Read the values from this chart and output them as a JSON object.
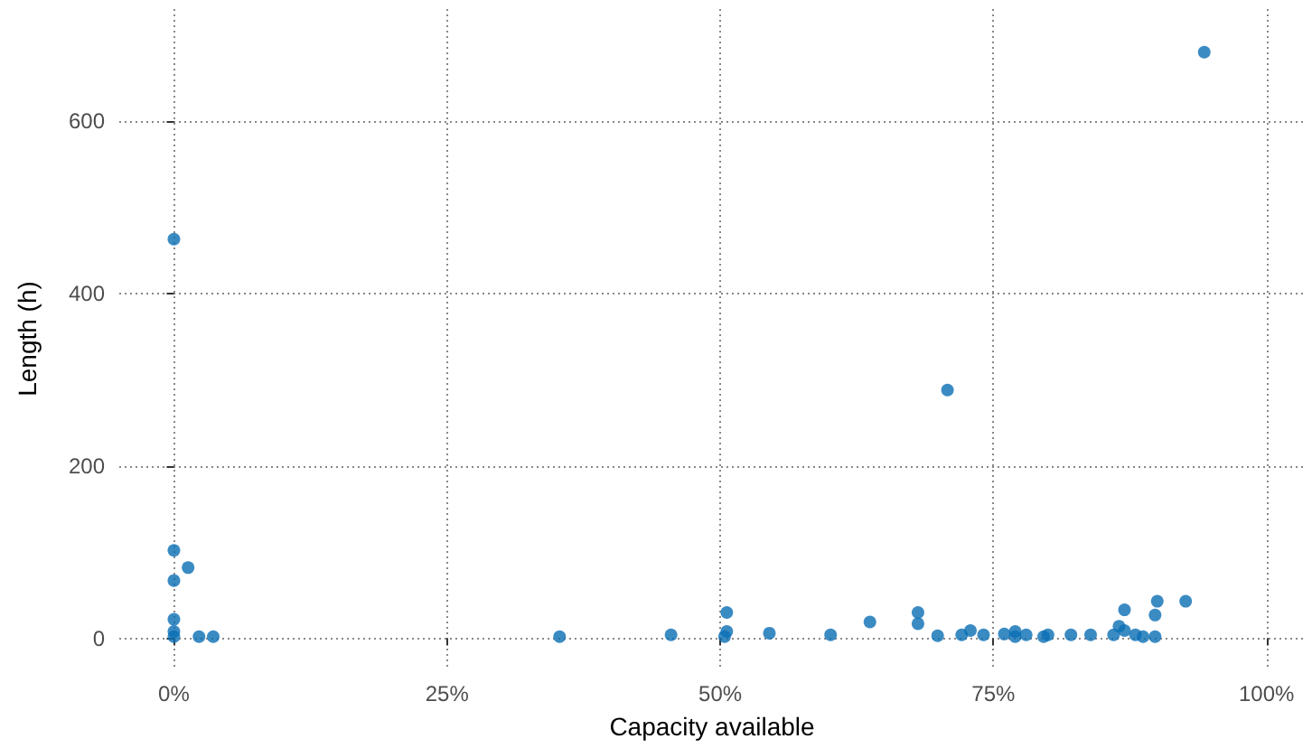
{
  "chart_data": {
    "type": "scatter",
    "xlabel": "Capacity available",
    "ylabel": "Length (h)",
    "x": [
      0,
      0,
      1.3,
      0,
      0,
      0,
      0,
      2.3,
      3.6,
      35.3,
      45.5,
      50.6,
      50.6,
      50.4,
      54.5,
      60.1,
      63.7,
      68.1,
      68.1,
      69.9,
      70.8,
      72.1,
      72.9,
      74.1,
      76.0,
      77.0,
      77.0,
      78.0,
      79.6,
      80.0,
      82.1,
      83.9,
      86.0,
      86.5,
      87.0,
      87.0,
      88.0,
      88.7,
      89.8,
      89.8,
      90.0,
      92.6,
      94.3
    ],
    "values": [
      463,
      102,
      82,
      67,
      22,
      8,
      2,
      2,
      2,
      2,
      4,
      30,
      8,
      2,
      6,
      4,
      19,
      30,
      17,
      3,
      288,
      4,
      9,
      4,
      5,
      8,
      2,
      4,
      2,
      4,
      4,
      4,
      4,
      14,
      33,
      9,
      4,
      2,
      2,
      27,
      43,
      43,
      680
    ],
    "color": "#0a6eb4",
    "marker": "circle",
    "grid": true,
    "xlim": [
      -5,
      103.5
    ],
    "xticks": [
      {
        "value": 0,
        "label": "0%"
      },
      {
        "value": 25,
        "label": "25%"
      },
      {
        "value": 50,
        "label": "50%"
      },
      {
        "value": 75,
        "label": "75%"
      },
      {
        "value": 100,
        "label": "100%"
      }
    ],
    "ylim": [
      -35,
      730
    ],
    "yticks": [
      0,
      200,
      400,
      600
    ]
  }
}
